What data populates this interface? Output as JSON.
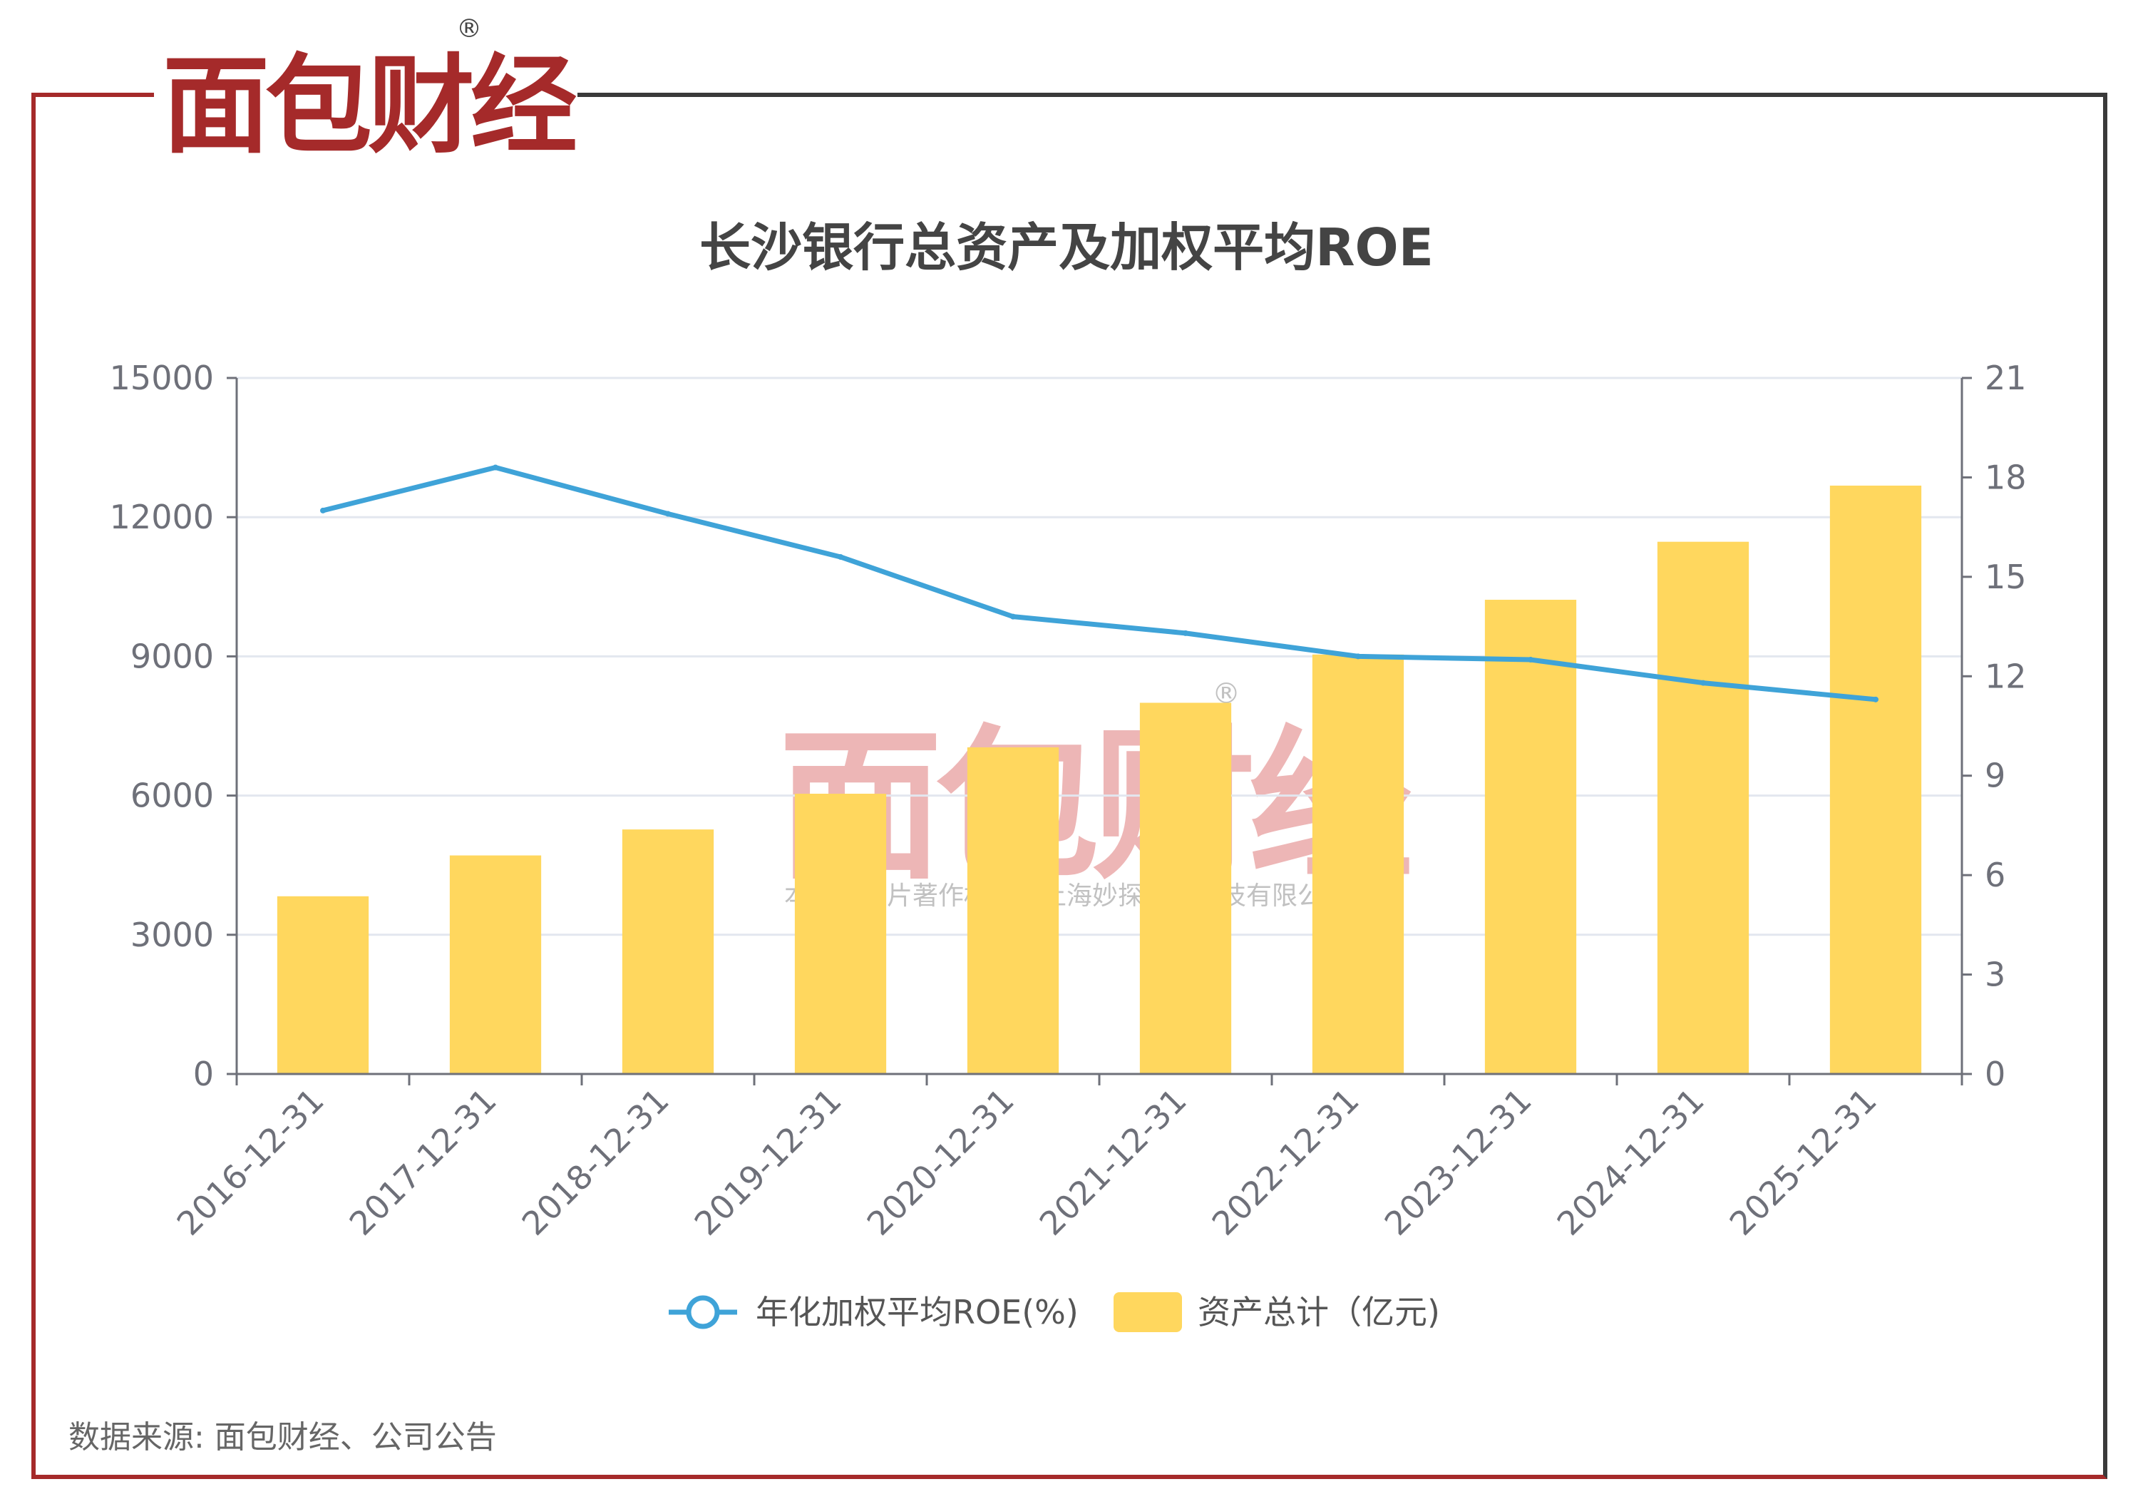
{
  "logo": {
    "text": "面包财经",
    "registered": "®"
  },
  "watermark": {
    "logo_text": "面包财经",
    "registered": "®",
    "notice": "本图表图片著作权属于上海妙探网络科技有限公司"
  },
  "source": "数据来源: 面包财经、公司公告",
  "colors": {
    "bar": "#ffd75e",
    "line": "#3fa3d8",
    "accent_red": "#a52a2a",
    "frame_dark": "#3a3a3a",
    "axis_text": "#6e7079",
    "grid": "#e3e7ef"
  },
  "chart_data": {
    "type": "bar",
    "title": "长沙银行总资产及加权平均ROE",
    "categories": [
      "2016-12-31",
      "2017-12-31",
      "2018-12-31",
      "2019-12-31",
      "2020-12-31",
      "2021-12-31",
      "2022-12-31",
      "2023-12-31",
      "2024-12-31",
      "2025-12-31"
    ],
    "series": [
      {
        "name": "资产总计（亿元)",
        "type": "bar",
        "axis": "left",
        "values": [
          3830,
          4710,
          5270,
          6040,
          7040,
          8000,
          9040,
          10220,
          11470,
          12680
        ]
      },
      {
        "name": "年化加权平均ROE(%)",
        "type": "line",
        "axis": "right",
        "values": [
          17.0,
          18.3,
          16.9,
          15.6,
          13.8,
          13.3,
          12.6,
          12.5,
          11.8,
          11.3
        ]
      }
    ],
    "y_left": {
      "ylim": [
        0,
        15000
      ],
      "ticks": [
        "0",
        "3000",
        "6000",
        "9000",
        "12000",
        "15000"
      ]
    },
    "y_right": {
      "ylim": [
        0,
        21
      ],
      "ticks": [
        "0",
        "3",
        "6",
        "9",
        "12",
        "15",
        "18",
        "21"
      ]
    },
    "grid": true,
    "legend": "bottom-center"
  }
}
